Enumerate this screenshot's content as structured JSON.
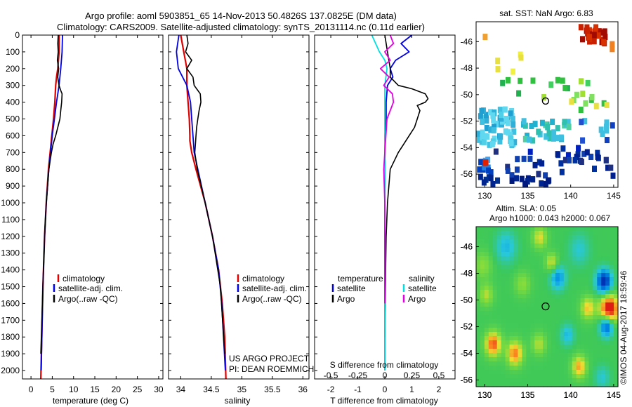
{
  "header": {
    "line1": "Argo profile: aoml 5903851_65 14-Nov-2013 50.4826S 137.0825E (DM data)",
    "line2": "Climatology: CARS2009. Satellite-adjusted climatology: synTS_20131114.nc (0.11d earlier)"
  },
  "colors": {
    "climatology": "#e00000",
    "satellite": "#0000e0",
    "argo": "#000000",
    "sal_satellite": "#00e0e0",
    "sal_argo": "#e000e0"
  },
  "chart_data": [
    {
      "type": "line",
      "title": "",
      "xlabel": "temperature (deg C)",
      "ylabel": "",
      "xlim": [
        -2,
        31
      ],
      "ylim": [
        2050,
        0
      ],
      "xticks": [
        0,
        5,
        10,
        15,
        20,
        25,
        30
      ],
      "yticks": [
        0,
        100,
        200,
        300,
        400,
        500,
        600,
        700,
        800,
        900,
        1000,
        1100,
        1200,
        1300,
        1400,
        1500,
        1600,
        1700,
        1800,
        1900,
        2000
      ],
      "legend": [
        "climatology",
        "satellite-adj. clim.",
        "Argo(..raw -QC)"
      ],
      "series": [
        {
          "name": "climatology",
          "depth": [
            0,
            100,
            200,
            250,
            300,
            400,
            500,
            600,
            700,
            800,
            1000,
            1200,
            1500,
            2050
          ],
          "values": [
            6.6,
            6.6,
            6.3,
            6.0,
            5.8,
            5.6,
            5.3,
            4.9,
            4.5,
            4.1,
            3.6,
            3.2,
            2.8,
            2.3
          ]
        },
        {
          "name": "satellite-adj. clim.",
          "depth": [
            0,
            100,
            200,
            300,
            400,
            500,
            600,
            700,
            800,
            1000,
            1200,
            1500,
            2000
          ],
          "values": [
            7.4,
            7.3,
            7.0,
            6.6,
            6.0,
            5.5,
            5.0,
            4.6,
            4.2,
            3.6,
            3.2,
            2.8,
            2.4
          ]
        },
        {
          "name": "Argo(..raw -QC)",
          "depth": [
            0,
            50,
            100,
            150,
            200,
            250,
            300,
            330,
            350,
            400,
            450,
            500,
            550,
            600,
            650,
            700,
            800,
            900,
            1000,
            1200,
            1500,
            1900
          ],
          "values": [
            6.4,
            6.3,
            6.4,
            6.2,
            6.5,
            6.3,
            6.6,
            7.0,
            7.3,
            7.2,
            7.0,
            6.8,
            6.3,
            5.8,
            5.2,
            4.8,
            4.2,
            3.9,
            3.6,
            3.2,
            2.8,
            2.3
          ]
        }
      ]
    },
    {
      "type": "line",
      "xlabel": "salinity",
      "xlim": [
        33.8,
        36.1
      ],
      "ylim": [
        2050,
        0
      ],
      "xticks": [
        34,
        34.5,
        35,
        35.5,
        36
      ],
      "legend": [
        "climatology",
        "satellite-adj. clim.",
        "Argo(..raw -QC)"
      ],
      "annotation": [
        "US ARGO PROJECT",
        "PI: DEAN ROEMMICH"
      ],
      "series": [
        {
          "name": "climatology",
          "depth": [
            0,
            100,
            200,
            300,
            400,
            500,
            600,
            630,
            700,
            800,
            1000,
            1200,
            1400,
            1600,
            1800,
            2050
          ],
          "values": [
            34.0,
            34.05,
            34.1,
            34.1,
            34.12,
            34.14,
            34.15,
            34.15,
            34.18,
            34.25,
            34.4,
            34.52,
            34.62,
            34.68,
            34.72,
            34.74
          ]
        },
        {
          "name": "satellite-adj. clim.",
          "depth": [
            0,
            50,
            100,
            200,
            300,
            400,
            500,
            600,
            700,
            800,
            1000,
            1200,
            1400,
            1600,
            1800,
            2000
          ],
          "values": [
            33.97,
            33.95,
            33.93,
            33.96,
            34.1,
            34.16,
            34.18,
            34.2,
            34.22,
            34.28,
            34.4,
            34.52,
            34.62,
            34.67,
            34.7,
            34.73
          ]
        },
        {
          "name": "Argo(..raw -QC)",
          "depth": [
            0,
            50,
            100,
            150,
            200,
            250,
            300,
            330,
            350,
            400,
            450,
            500,
            550,
            600,
            650,
            700,
            800,
            1000,
            1200,
            1500,
            1900
          ],
          "values": [
            34.1,
            34.12,
            34.08,
            34.18,
            34.1,
            34.2,
            34.22,
            34.28,
            34.32,
            34.33,
            34.3,
            34.28,
            34.26,
            34.25,
            34.24,
            34.23,
            34.27,
            34.4,
            34.52,
            34.65,
            34.72
          ]
        }
      ]
    },
    {
      "type": "line",
      "xlabel": "T difference from climatology",
      "xlabel2": "S difference from climatology",
      "xlim": [
        -2.6,
        2.6
      ],
      "ylim": [
        2050,
        0
      ],
      "xticks": [
        -2,
        -1,
        0,
        1,
        2
      ],
      "xticks_S": [
        -0.5,
        -0.25,
        0,
        0.25,
        0.5
      ],
      "legend_headers": [
        "temperature",
        "salinity"
      ],
      "legend": [
        "satellite",
        "Argo",
        "satellite",
        "Argo"
      ],
      "series": [
        {
          "name": "T satellite",
          "depth": [
            0,
            50,
            100,
            150,
            200,
            250,
            300,
            400,
            500,
            600,
            700,
            800,
            1000,
            1500,
            2000
          ],
          "values": [
            1.0,
            0.6,
            0.9,
            0.4,
            0.2,
            0.3,
            0.1,
            0.05,
            0.05,
            0.0,
            0.0,
            0.0,
            0.0,
            0.0,
            0.0
          ]
        },
        {
          "name": "T Argo",
          "depth": [
            0,
            100,
            200,
            250,
            300,
            320,
            350,
            380,
            400,
            420,
            450,
            500,
            550,
            600,
            650,
            700,
            800,
            1000,
            1200,
            1500,
            1800
          ],
          "values": [
            0.0,
            0.1,
            0.2,
            0.2,
            0.5,
            1.0,
            1.5,
            1.6,
            1.5,
            1.2,
            1.3,
            1.2,
            1.1,
            0.9,
            0.7,
            0.5,
            0.2,
            0.1,
            0.05,
            0.02,
            0.0
          ]
        },
        {
          "name": "S satellite",
          "depth": [
            0,
            100,
            150,
            200,
            300,
            400,
            500,
            1000,
            1500,
            2000
          ],
          "values": [
            -0.12,
            -0.05,
            0.0,
            0.02,
            0.0,
            0.0,
            0.0,
            0.0,
            0.0,
            0.0
          ]
        },
        {
          "name": "S Argo",
          "depth": [
            0,
            50,
            100,
            150,
            200,
            250,
            300,
            350,
            400,
            500,
            600,
            700,
            800,
            1000,
            1400,
            1600
          ],
          "values": [
            0.05,
            0.08,
            0.0,
            0.05,
            -0.04,
            0.04,
            -0.01,
            0.07,
            0.08,
            0.02,
            0.01,
            0.0,
            -0.01,
            0.0,
            0.0,
            0.0
          ]
        }
      ]
    },
    {
      "type": "heatmap",
      "title": "sat. SST: NaN Argo: 6.83",
      "xlim": [
        129,
        145.5
      ],
      "ylim": [
        -57,
        -44.5
      ],
      "xticks": [
        130,
        135,
        140,
        145
      ],
      "yticks": [
        -46,
        -48,
        -50,
        -52,
        -54,
        -56
      ],
      "marker": {
        "lon": 137.08,
        "lat": -50.48
      }
    },
    {
      "type": "heatmap",
      "title": "Altim. SLA: 0.05",
      "subtitle": "Argo h1000: 0.043 h2000: 0.067",
      "xlim": [
        129,
        145.5
      ],
      "ylim": [
        -56.5,
        -44.5
      ],
      "xticks": [
        130,
        135,
        140,
        145
      ],
      "yticks": [
        -46,
        -48,
        -50,
        -52,
        -54,
        -56
      ],
      "marker": {
        "lon": 137.08,
        "lat": -50.48
      },
      "side_label": "©IMOS 04-Aug-2017 18:59:46"
    }
  ]
}
